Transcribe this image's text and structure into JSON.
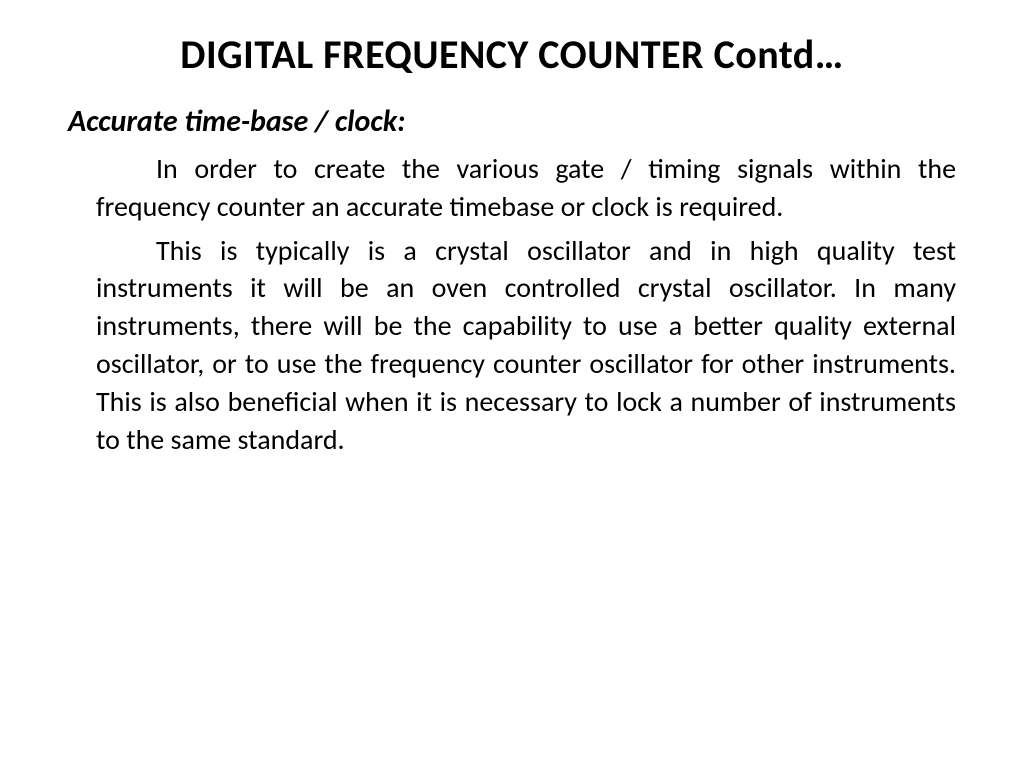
{
  "slide": {
    "title": "DIGITAL FREQUENCY COUNTER Contd…",
    "subheading": "Accurate time-base / clock:",
    "paragraphs": [
      "In order to create the various gate / timing signals within the frequency counter an accurate timebase or clock is required.",
      "This is typically is a crystal oscillator and in high quality test instruments it will be an oven controlled crystal oscillator. In many instruments, there will be the capability to use a better quality external oscillator, or to use the frequency counter oscillator for other instruments. This is also beneficial when it is necessary to lock a number of instruments to the same standard."
    ],
    "colors": {
      "background": "#ffffff",
      "text": "#000000"
    },
    "typography": {
      "title_fontsize": 40,
      "title_weight": 700,
      "subheading_fontsize": 30,
      "subheading_weight": 700,
      "subheading_style": "italic",
      "body_fontsize": 28,
      "body_align": "justify",
      "font_family": "Calibri"
    }
  }
}
